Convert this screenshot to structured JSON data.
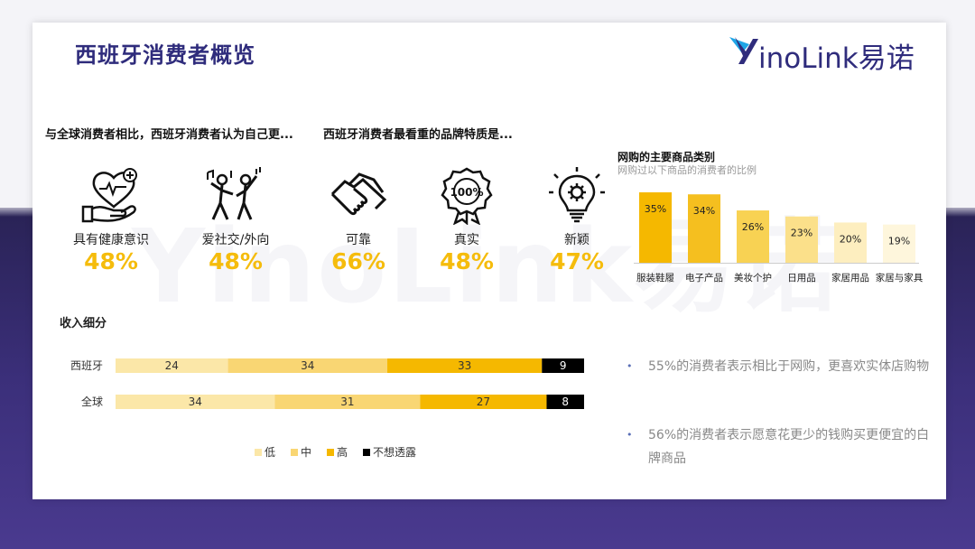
{
  "page": {
    "title": "西班牙消费者概览",
    "logo_text": "inoLink易诺",
    "watermark": "YinoLink易诺"
  },
  "traits_heading": "与全球消费者相比，西班牙消费者认为自己更...",
  "brand_heading": "西班牙消费者最看重的品牌特质是...",
  "traits": [
    {
      "icon": "heart-hand-icon",
      "label": "具有健康意识",
      "pct": "48%"
    },
    {
      "icon": "dancing-people-icon",
      "label": "爱社交/外向",
      "pct": "48%"
    },
    {
      "icon": "handshake-icon",
      "label": "可靠",
      "pct": "66%"
    }
  ],
  "brand_traits": [
    {
      "icon": "badge-100-icon",
      "label": "真实",
      "pct": "48%"
    },
    {
      "icon": "lightbulb-gear-icon",
      "label": "新颖",
      "pct": "47%"
    }
  ],
  "colors": {
    "title": "#2f2c7c",
    "accent": "#f5bc0c",
    "low": "#fbe7a8",
    "mid": "#f9d673",
    "high": "#f5b800",
    "none": "#000000"
  },
  "chart_data": [
    {
      "type": "bar",
      "title": "网购的主要商品类别",
      "subtitle": "网购过以下商品的消费者的比例",
      "categories": [
        "服装鞋履",
        "电子产品",
        "美妆个护",
        "日用品",
        "家居用品",
        "家居与家具"
      ],
      "values": [
        35,
        34,
        26,
        23,
        20,
        19
      ],
      "labels": [
        "35%",
        "34%",
        "26%",
        "23%",
        "20%",
        "19%"
      ],
      "ylim": [
        0,
        35
      ]
    },
    {
      "type": "bar",
      "title": "收入细分",
      "orientation": "horizontal-stacked",
      "categories": [
        "西班牙",
        "全球"
      ],
      "series": [
        {
          "name": "低",
          "values": [
            24,
            34
          ]
        },
        {
          "name": "中",
          "values": [
            34,
            31
          ]
        },
        {
          "name": "高",
          "values": [
            33,
            27
          ]
        },
        {
          "name": "不想透露",
          "values": [
            9,
            8
          ]
        }
      ],
      "legend": "bottom"
    }
  ],
  "bullets": [
    "55%的消费者表示相比于网购，更喜欢实体店购物",
    "56%的消费者表示愿意花更少的钱购买更便宜的白牌商品"
  ]
}
